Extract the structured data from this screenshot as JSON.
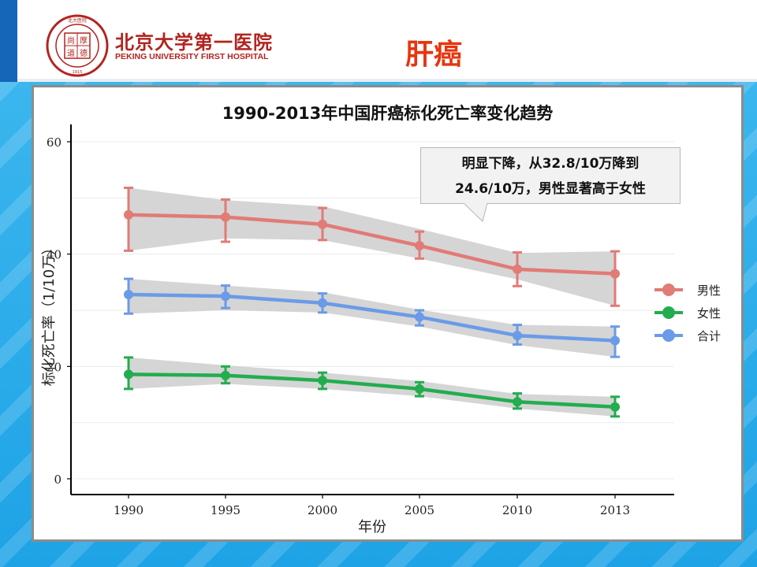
{
  "header": {
    "logo_seal_text": [
      "北大医院",
      "尚",
      "厚",
      "道",
      "德",
      "PEKING UNIVERSITY FIRST HOSPITAL",
      "1915"
    ],
    "hospital_name_cn": "北京大学第一医院",
    "hospital_name_en": "PEKING UNIVERSITY FIRST HOSPITAL",
    "page_title": "肝癌"
  },
  "callout": {
    "line1": "明显下降，从32.8/10万降到",
    "line2": "24.6/10万，男性显著高于女性"
  },
  "colors": {
    "title_red": "#e8350e",
    "brand_red": "#b3231f",
    "male": "#e17b76",
    "female": "#23ad4e",
    "total": "#6a9be8",
    "ribbon": "#d3d3d3"
  },
  "chart_data": {
    "type": "line",
    "title": "1990-2013年中国肝癌标化死亡率变化趋势",
    "xlabel": "年份",
    "ylabel": "标化死亡率（1/10万）",
    "categories": [
      "1990",
      "1995",
      "2000",
      "2005",
      "2010",
      "2013"
    ],
    "ylim": [
      0,
      60
    ],
    "yticks": [
      0,
      20,
      40,
      60
    ],
    "grid": "horizontal",
    "legend_position": "right",
    "series": [
      {
        "name": "男性",
        "color": "#e17b76",
        "values": [
          47.0,
          46.6,
          45.3,
          41.5,
          37.3,
          36.5
        ],
        "error_low": [
          40.6,
          42.2,
          42.5,
          39.2,
          34.3,
          30.8
        ],
        "error_high": [
          51.8,
          49.7,
          48.2,
          44.0,
          40.3,
          40.5
        ],
        "band_low": [
          40.6,
          42.8,
          42.5,
          39.2,
          35.5,
          30.8
        ],
        "band_high": [
          51.8,
          49.6,
          48.5,
          44.5,
          40.2,
          40.5
        ]
      },
      {
        "name": "女性",
        "color": "#23ad4e",
        "values": [
          18.6,
          18.4,
          17.5,
          16.0,
          13.7,
          12.8
        ],
        "error_low": [
          16.0,
          17.0,
          16.0,
          14.7,
          12.5,
          11.1
        ],
        "error_high": [
          21.6,
          20.0,
          18.9,
          17.2,
          15.2,
          14.6
        ],
        "band_low": [
          16.0,
          16.9,
          16.0,
          14.7,
          12.5,
          11.1
        ],
        "band_high": [
          21.6,
          20.2,
          18.9,
          17.4,
          15.1,
          14.6
        ]
      },
      {
        "name": "合计",
        "color": "#6a9be8",
        "values": [
          32.8,
          32.5,
          31.3,
          28.8,
          25.5,
          24.6
        ],
        "error_low": [
          29.4,
          30.4,
          29.6,
          27.3,
          23.9,
          21.7
        ],
        "error_high": [
          35.6,
          34.4,
          33.0,
          30.0,
          27.4,
          27.1
        ],
        "band_low": [
          29.4,
          30.0,
          29.6,
          27.1,
          23.8,
          21.7
        ],
        "band_high": [
          35.6,
          34.4,
          33.2,
          30.1,
          27.4,
          27.1
        ]
      }
    ]
  }
}
